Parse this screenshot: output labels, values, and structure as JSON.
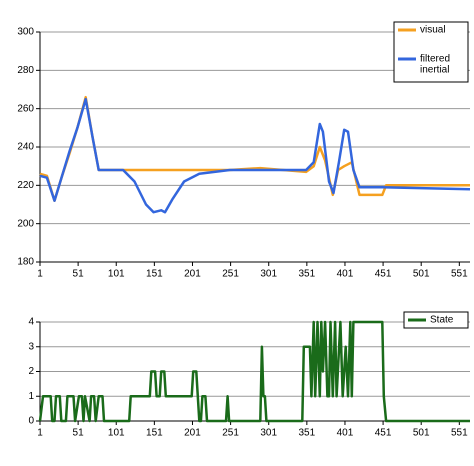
{
  "chart_data": [
    {
      "type": "line",
      "legend": "upper right",
      "grid": true,
      "xlim": [
        1,
        565
      ],
      "xticks": [
        1,
        51,
        101,
        151,
        201,
        251,
        301,
        351,
        401,
        451,
        501,
        551
      ],
      "ylim": [
        180,
        300
      ],
      "yticks": [
        180,
        200,
        220,
        240,
        260,
        280,
        300
      ],
      "series": [
        {
          "name": "visual",
          "color": "#f5a020",
          "x": [
            1,
            10,
            20,
            30,
            40,
            50,
            61,
            70,
            78,
            100,
            150,
            200,
            250,
            290,
            350,
            360,
            368,
            375,
            385,
            392,
            400,
            410,
            420,
            450,
            455,
            565
          ],
          "values": [
            226,
            225,
            212,
            225,
            237,
            250,
            266,
            245,
            228,
            228,
            228,
            228,
            228,
            229,
            227,
            230,
            240,
            233,
            215,
            228,
            230,
            232,
            215,
            215,
            220,
            220
          ]
        },
        {
          "name": "filtered inertial",
          "color": "#3366dd",
          "x": [
            1,
            10,
            20,
            30,
            40,
            50,
            61,
            70,
            78,
            110,
            125,
            140,
            150,
            160,
            165,
            175,
            190,
            210,
            250,
            350,
            360,
            368,
            372,
            380,
            386,
            393,
            400,
            405,
            412,
            420,
            450,
            565
          ],
          "values": [
            225,
            224,
            212,
            225,
            238,
            250,
            265,
            245,
            228,
            228,
            222,
            210,
            206,
            207,
            206,
            213,
            222,
            226,
            228,
            228,
            232,
            252,
            248,
            222,
            216,
            232,
            249,
            248,
            228,
            219,
            219,
            218
          ]
        }
      ]
    },
    {
      "type": "line",
      "legend": "upper right",
      "grid": true,
      "xlim": [
        1,
        565
      ],
      "xticks": [
        1,
        51,
        101,
        151,
        201,
        251,
        301,
        351,
        401,
        451,
        501,
        551
      ],
      "ylim": [
        0,
        4
      ],
      "yticks": [
        0,
        1,
        2,
        3,
        4
      ],
      "series": [
        {
          "name": "State",
          "color": "#1a6b1a",
          "x": [
            1,
            5,
            15,
            17,
            20,
            22,
            27,
            29,
            35,
            37,
            45,
            47,
            52,
            56,
            58,
            60,
            66,
            68,
            72,
            74,
            78,
            83,
            85,
            118,
            120,
            145,
            147,
            152,
            154,
            158,
            160,
            164,
            166,
            200,
            202,
            206,
            208,
            210,
            212,
            214,
            218,
            220,
            245,
            247,
            249,
            290,
            292,
            294,
            296,
            298,
            345,
            347,
            355,
            357,
            360,
            362,
            365,
            368,
            370,
            372,
            375,
            378,
            380,
            382,
            385,
            388,
            390,
            395,
            398,
            402,
            405,
            408,
            410,
            412,
            450,
            452,
            455,
            565
          ],
          "values": [
            0,
            1,
            1,
            0,
            0,
            1,
            1,
            0,
            0,
            1,
            1,
            0,
            1,
            1,
            0,
            1,
            0,
            1,
            1,
            0,
            1,
            1,
            0,
            0,
            1,
            1,
            2,
            2,
            1,
            1,
            2,
            2,
            1,
            1,
            2,
            2,
            1,
            0,
            0,
            1,
            1,
            0,
            0,
            1,
            0,
            0,
            3,
            1,
            1,
            0,
            0,
            3,
            3,
            1,
            4,
            1,
            4,
            1,
            4,
            2,
            4,
            1,
            1,
            4,
            1,
            4,
            1,
            4,
            1,
            3,
            1,
            4,
            1,
            4,
            4,
            1,
            0,
            0
          ]
        }
      ]
    }
  ]
}
